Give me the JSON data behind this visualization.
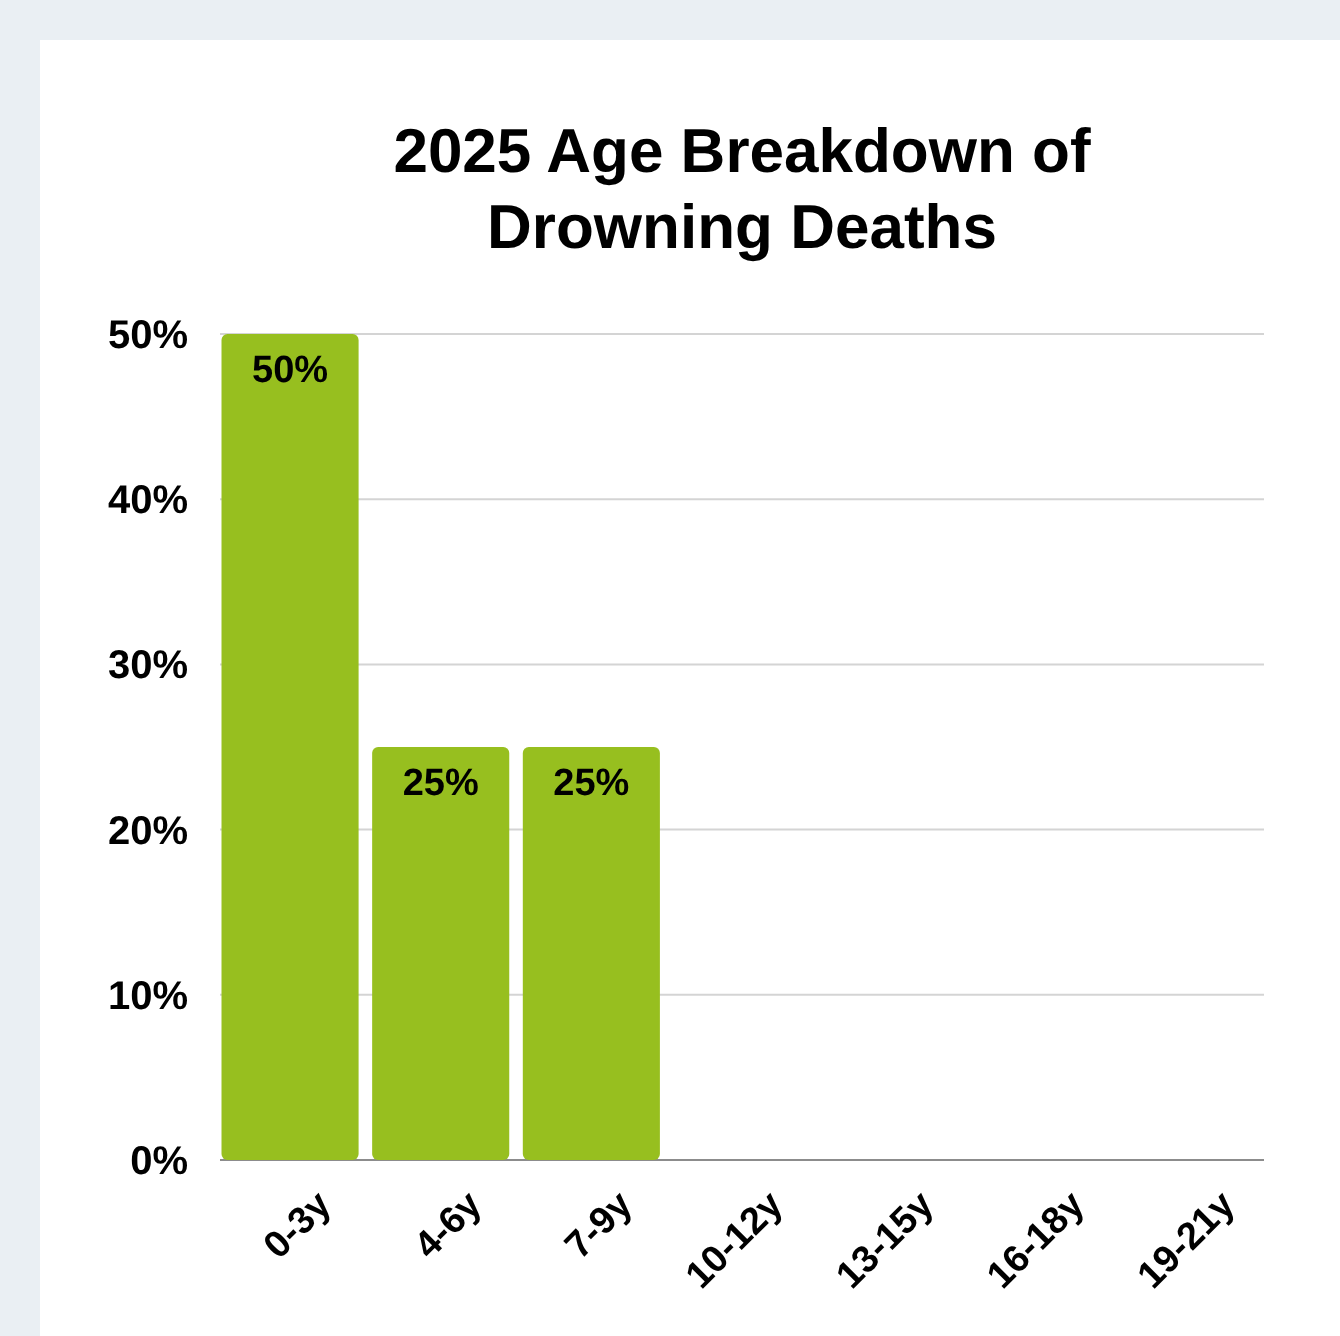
{
  "chart_data": {
    "type": "bar",
    "title": "2025 Age Breakdown of Drowning Deaths",
    "categories": [
      "0-3y",
      "4-6y",
      "7-9y",
      "10-12y",
      "13-15y",
      "16-18y",
      "19-21y"
    ],
    "values": [
      50,
      25,
      25,
      0,
      0,
      0,
      0
    ],
    "value_labels": [
      "50%",
      "25%",
      "25%",
      null,
      null,
      null,
      null
    ],
    "color": "#97bf1f",
    "ylim": [
      0,
      50
    ],
    "yticks": [
      {
        "value": 0,
        "label": "0%"
      },
      {
        "value": 10,
        "label": "10%"
      },
      {
        "value": 20,
        "label": "20%"
      },
      {
        "value": 30,
        "label": "30%"
      },
      {
        "value": 40,
        "label": "40%"
      },
      {
        "value": 50,
        "label": "50%"
      }
    ],
    "grid": "y"
  }
}
